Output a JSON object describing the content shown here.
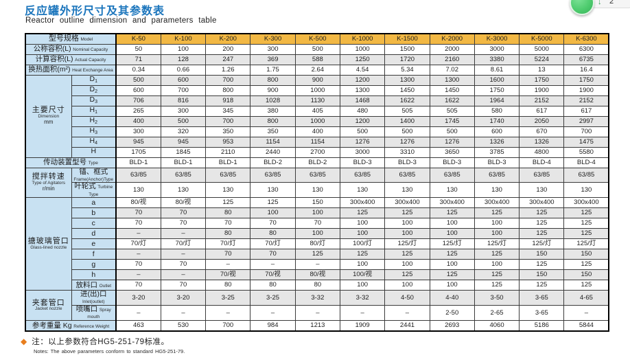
{
  "page": {
    "title_zh": "反应罐外形尺寸及其参数表",
    "title_en": "Reactor outline dimension and parameters table"
  },
  "colors": {
    "title_blue": "#1b75bc",
    "header_yellow": "#f2b844",
    "label_blue": "#c8e1f2",
    "row_shade_gray": "#e6e6e6",
    "note_orange": "#e87e1e",
    "overlay_green": "#4fcc6f"
  },
  "overlay": {
    "arrow": "↓",
    "count": "2"
  },
  "table": {
    "model_header": {
      "zh": "型号规格",
      "en": "Model"
    },
    "columns": [
      "K-50",
      "K-100",
      "K-200",
      "K-300",
      "K-500",
      "K-1000",
      "K-1500",
      "K-2000",
      "K-3000",
      "K-5000",
      "K-6300"
    ],
    "rows": [
      {
        "span": true,
        "zh": "公称容积(L)",
        "en": "Nominal Capacity",
        "shade": false,
        "values": [
          "50",
          "100",
          "200",
          "300",
          "500",
          "1000",
          "1500",
          "2000",
          "3000",
          "5000",
          "6300"
        ]
      },
      {
        "span": true,
        "zh": "计算容积(L)",
        "en": "Actual Capacity",
        "shade": true,
        "values": [
          "71",
          "128",
          "247",
          "369",
          "588",
          "1250",
          "1720",
          "2160",
          "3380",
          "5224",
          "6735"
        ]
      },
      {
        "span": true,
        "zh": "换热面积(m²)",
        "en": "Heat Exchange Area",
        "shade": false,
        "values": [
          "0.34",
          "0.66",
          "1.26",
          "1.75",
          "2.64",
          "4.54",
          "5.34",
          "7.02",
          "8.61",
          "13",
          "16.4"
        ]
      },
      {
        "section": {
          "zh": "主要尺寸",
          "en": "Dimension",
          "en2": "mm",
          "rows": 8
        },
        "base": "D",
        "sub": "1",
        "shade": true,
        "values": [
          "500",
          "600",
          "700",
          "800",
          "900",
          "1200",
          "1300",
          "1300",
          "1600",
          "1750",
          "1750"
        ]
      },
      {
        "base": "D",
        "sub": "2",
        "shade": false,
        "values": [
          "600",
          "700",
          "800",
          "900",
          "1000",
          "1300",
          "1450",
          "1450",
          "1750",
          "1900",
          "1900"
        ]
      },
      {
        "base": "D",
        "sub": "3",
        "shade": true,
        "values": [
          "706",
          "816",
          "918",
          "1028",
          "1130",
          "1468",
          "1622",
          "1622",
          "1964",
          "2152",
          "2152"
        ]
      },
      {
        "base": "H",
        "sub": "1",
        "shade": false,
        "values": [
          "265",
          "300",
          "345",
          "380",
          "405",
          "480",
          "505",
          "505",
          "580",
          "617",
          "617"
        ]
      },
      {
        "base": "H",
        "sub": "2",
        "shade": true,
        "values": [
          "400",
          "500",
          "700",
          "800",
          "1000",
          "1200",
          "1400",
          "1745",
          "1740",
          "2050",
          "2997"
        ]
      },
      {
        "base": "H",
        "sub": "3",
        "shade": false,
        "values": [
          "300",
          "320",
          "350",
          "350",
          "400",
          "500",
          "500",
          "500",
          "600",
          "670",
          "700"
        ]
      },
      {
        "base": "H",
        "sub": "4",
        "shade": true,
        "values": [
          "945",
          "945",
          "953",
          "1154",
          "1154",
          "1276",
          "1276",
          "1276",
          "1326",
          "1326",
          "1475"
        ]
      },
      {
        "base": "H",
        "shade": false,
        "values": [
          "1705",
          "1845",
          "2110",
          "2440",
          "2700",
          "3000",
          "3310",
          "3650",
          "3785",
          "4800",
          "5580"
        ]
      },
      {
        "span": true,
        "zh": "传动装置型号",
        "en": "Type",
        "shade": false,
        "values": [
          "BLD-1",
          "BLD-1",
          "BLD-1",
          "BLD-2",
          "BLD-2",
          "BLD-3",
          "BLD-3",
          "BLD-3",
          "BLD-3",
          "BLD-4",
          "BLD-4"
        ]
      },
      {
        "section": {
          "zh": "搅拌转速",
          "en": "Type of Agitators",
          "en2": "r/min",
          "rows": 2
        },
        "zh2": "锚、框式",
        "en": "Frame(Anchor)Type",
        "shade": true,
        "values": [
          "63/85",
          "63/85",
          "63/85",
          "63/85",
          "63/85",
          "63/85",
          "63/85",
          "63/85",
          "63/85",
          "63/85",
          "63/85"
        ]
      },
      {
        "zh2": "叶轮式",
        "en": "Turbine Type",
        "shade": false,
        "values": [
          "130",
          "130",
          "130",
          "130",
          "130",
          "130",
          "130",
          "130",
          "130",
          "130",
          "130"
        ]
      },
      {
        "section": {
          "zh": "搪玻璃管口",
          "en": "Glass-lined nozzle",
          "rows": 9
        },
        "zh2": "a",
        "shade": false,
        "values": [
          "80/视",
          "80/视",
          "125",
          "125",
          "150",
          "300x400",
          "300x400",
          "300x400",
          "300x400",
          "300x400",
          "300x400"
        ]
      },
      {
        "zh2": "b",
        "shade": true,
        "values": [
          "70",
          "70",
          "80",
          "100",
          "100",
          "125",
          "125",
          "125",
          "125",
          "125",
          "125"
        ]
      },
      {
        "zh2": "c",
        "shade": false,
        "values": [
          "70",
          "70",
          "70",
          "70",
          "70",
          "100",
          "100",
          "100",
          "100",
          "125",
          "125"
        ]
      },
      {
        "zh2": "d",
        "shade": true,
        "values": [
          "–",
          "–",
          "80",
          "80",
          "100",
          "100",
          "100",
          "100",
          "100",
          "125",
          "125"
        ]
      },
      {
        "zh2": "e",
        "shade": false,
        "values": [
          "70/灯",
          "70/灯",
          "70/灯",
          "70/灯",
          "80/灯",
          "100/灯",
          "125/灯",
          "125/灯",
          "125/灯",
          "125/灯",
          "125/灯"
        ]
      },
      {
        "zh2": "f",
        "shade": true,
        "values": [
          "–",
          "–",
          "70",
          "70",
          "125",
          "125",
          "125",
          "125",
          "125",
          "150",
          "150"
        ]
      },
      {
        "zh2": "g",
        "shade": false,
        "values": [
          "70",
          "70",
          "–",
          "–",
          "–",
          "100",
          "100",
          "100",
          "100",
          "125",
          "125"
        ]
      },
      {
        "zh2": "h",
        "shade": true,
        "values": [
          "–",
          "–",
          "70/视",
          "70/视",
          "80/视",
          "100/视",
          "125",
          "125",
          "125",
          "150",
          "150"
        ]
      },
      {
        "zh2": "放料口",
        "en": "Outlet",
        "shade": false,
        "values": [
          "70",
          "70",
          "80",
          "80",
          "80",
          "100",
          "100",
          "100",
          "125",
          "125",
          "125"
        ]
      },
      {
        "section": {
          "zh": "夹套管口",
          "en": "Jacket nozzle",
          "rows": 2
        },
        "zh2": "进(出)口",
        "en": "Inlet(outlet)",
        "shade": true,
        "values": [
          "3-20",
          "3-20",
          "3-25",
          "3-25",
          "3-32",
          "3-32",
          "4-50",
          "4-40",
          "3-50",
          "3-65",
          "4-65"
        ]
      },
      {
        "zh2": "喷嘴口",
        "en": "Spray mouth",
        "shade": false,
        "values": [
          "–",
          "–",
          "–",
          "–",
          "–",
          "–",
          "–",
          "2-50",
          "2-65",
          "3-65",
          "–"
        ]
      },
      {
        "span": true,
        "zh": "参考重量 Kg",
        "en": "Reference Weight",
        "shade": false,
        "values": [
          "463",
          "530",
          "700",
          "984",
          "1213",
          "1909",
          "2441",
          "2693",
          "4060",
          "5186",
          "5844"
        ]
      }
    ]
  },
  "note": {
    "bullet": "◆",
    "zh": "注：以上参数符合HG5-251-79标准。",
    "en": "Notes: The above parameters conform to standard HG5-251-79."
  }
}
